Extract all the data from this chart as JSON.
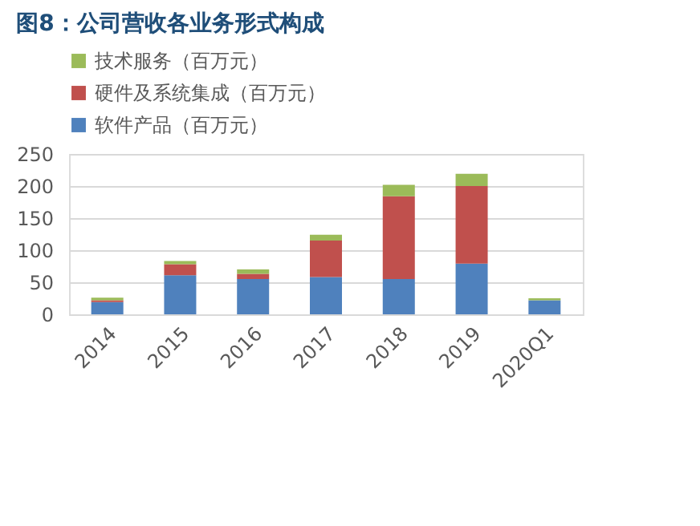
{
  "chart_data": {
    "type": "bar",
    "title": "图8：公司营收各业务形式构成",
    "stacked": true,
    "categories": [
      "2014",
      "2015",
      "2016",
      "2017",
      "2018",
      "2019",
      "2020Q1"
    ],
    "series": [
      {
        "name": "软件产品（百万元）",
        "color": "#4f81bd",
        "values": [
          19,
          61,
          55,
          58,
          55,
          79,
          22
        ]
      },
      {
        "name": "硬件及系统集成（百万元）",
        "color": "#c0504d",
        "values": [
          3,
          17,
          8,
          57,
          129,
          121,
          null
        ]
      },
      {
        "name": "技术服务（百万元）",
        "color": "#9bbb59",
        "values": [
          4,
          5,
          7,
          9,
          18,
          19,
          3
        ]
      }
    ],
    "ylim": [
      0,
      250
    ],
    "yticks": [
      0,
      50,
      100,
      150,
      200,
      250
    ],
    "grid": "y",
    "legend": "top"
  }
}
